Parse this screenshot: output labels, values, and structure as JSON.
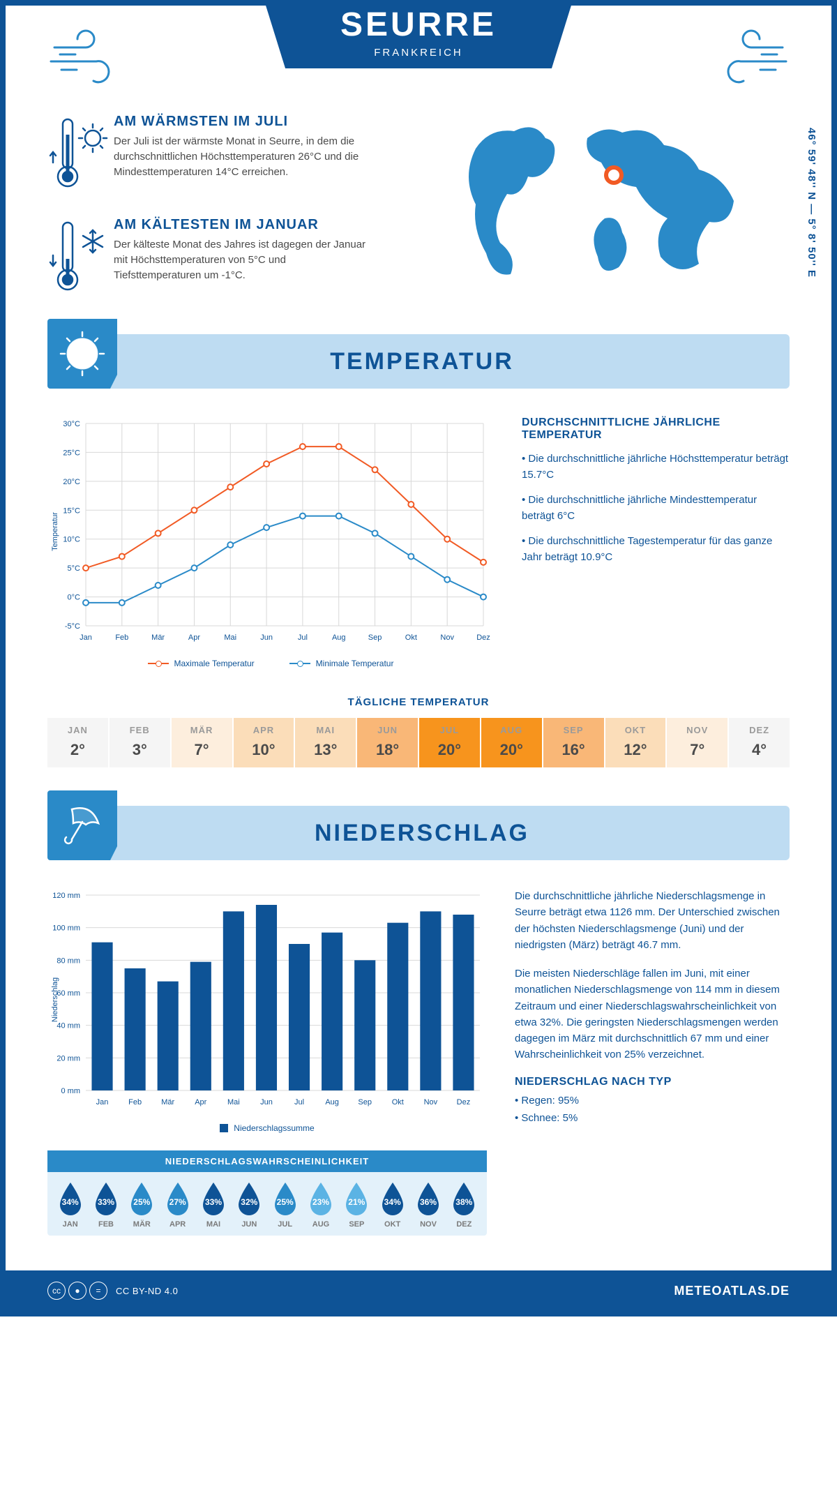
{
  "header": {
    "title": "SEURRE",
    "country": "FRANKREICH"
  },
  "coords": "46° 59' 48'' N — 5° 8' 50'' E",
  "warm": {
    "heading": "AM WÄRMSTEN IM JULI",
    "text": "Der Juli ist der wärmste Monat in Seurre, in dem die durchschnittlichen Höchsttemperaturen 26°C und die Mindesttemperaturen 14°C erreichen."
  },
  "cold": {
    "heading": "AM KÄLTESTEN IM JANUAR",
    "text": "Der kälteste Monat des Jahres ist dagegen der Januar mit Höchsttemperaturen von 5°C und Tiefsttemperaturen um -1°C."
  },
  "sections": {
    "temp": "TEMPERATUR",
    "precip": "NIEDERSCHLAG"
  },
  "tempChart": {
    "type": "line",
    "months": [
      "Jan",
      "Feb",
      "Mär",
      "Apr",
      "Mai",
      "Jun",
      "Jul",
      "Aug",
      "Sep",
      "Okt",
      "Nov",
      "Dez"
    ],
    "max": [
      5,
      7,
      11,
      15,
      19,
      23,
      26,
      26,
      22,
      16,
      10,
      6
    ],
    "min": [
      -1,
      -1,
      2,
      5,
      9,
      12,
      14,
      14,
      11,
      7,
      3,
      0
    ],
    "max_color": "#f15a24",
    "min_color": "#2a8ac8",
    "ylim": [
      -5,
      30
    ],
    "ytick_step": 5,
    "grid_color": "#d8d8d8",
    "line_width": 2,
    "ylabel": "Temperatur",
    "legend_max": "Maximale Temperatur",
    "legend_min": "Minimale Temperatur"
  },
  "tempNotes": {
    "heading": "DURCHSCHNITTLICHE JÄHRLICHE TEMPERATUR",
    "b1": "• Die durchschnittliche jährliche Höchsttemperatur beträgt 15.7°C",
    "b2": "• Die durchschnittliche jährliche Mindesttemperatur beträgt 6°C",
    "b3": "• Die durchschnittliche Tagestemperatur für das ganze Jahr beträgt 10.9°C"
  },
  "dailyTemp": {
    "heading": "TÄGLICHE TEMPERATUR",
    "months": [
      "JAN",
      "FEB",
      "MÄR",
      "APR",
      "MAI",
      "JUN",
      "JUL",
      "AUG",
      "SEP",
      "OKT",
      "NOV",
      "DEZ"
    ],
    "values": [
      "2°",
      "3°",
      "7°",
      "10°",
      "13°",
      "18°",
      "20°",
      "20°",
      "16°",
      "12°",
      "7°",
      "4°"
    ],
    "colors": [
      "#f5f5f5",
      "#f5f5f5",
      "#fdeedd",
      "#fbddb9",
      "#fbddb9",
      "#f9b777",
      "#f7941d",
      "#f7941d",
      "#f9b777",
      "#fbddb9",
      "#fdeedd",
      "#f5f5f5"
    ]
  },
  "precipChart": {
    "type": "bar",
    "months": [
      "Jan",
      "Feb",
      "Mär",
      "Apr",
      "Mai",
      "Jun",
      "Jul",
      "Aug",
      "Sep",
      "Okt",
      "Nov",
      "Dez"
    ],
    "values": [
      91,
      75,
      67,
      79,
      110,
      114,
      90,
      97,
      80,
      103,
      110,
      108
    ],
    "bar_color": "#0e5396",
    "ylim": [
      0,
      120
    ],
    "ytick_step": 20,
    "ylabel": "Niederschlag",
    "legend": "Niederschlagssumme",
    "grid_color": "#d8d8d8"
  },
  "precipText": {
    "p1": "Die durchschnittliche jährliche Niederschlagsmenge in Seurre beträgt etwa 1126 mm. Der Unterschied zwischen der höchsten Niederschlagsmenge (Juni) und der niedrigsten (März) beträgt 46.7 mm.",
    "p2": "Die meisten Niederschläge fallen im Juni, mit einer monatlichen Niederschlagsmenge von 114 mm in diesem Zeitraum und einer Niederschlagswahrscheinlichkeit von etwa 32%. Die geringsten Niederschlagsmengen werden dagegen im März mit durchschnittlich 67 mm und einer Wahrscheinlichkeit von 25% verzeichnet.",
    "h": "NIEDERSCHLAG NACH TYP",
    "rain": "• Regen: 95%",
    "snow": "• Schnee: 5%"
  },
  "prob": {
    "heading": "NIEDERSCHLAGSWAHRSCHEINLICHKEIT",
    "months": [
      "JAN",
      "FEB",
      "MÄR",
      "APR",
      "MAI",
      "JUN",
      "JUL",
      "AUG",
      "SEP",
      "OKT",
      "NOV",
      "DEZ"
    ],
    "values": [
      "34%",
      "33%",
      "25%",
      "27%",
      "33%",
      "32%",
      "25%",
      "23%",
      "21%",
      "34%",
      "36%",
      "38%"
    ],
    "colors": [
      "#0e5396",
      "#0e5396",
      "#2a8ac8",
      "#2a8ac8",
      "#0e5396",
      "#0e5396",
      "#2a8ac8",
      "#5bb3e4",
      "#5bb3e4",
      "#0e5396",
      "#0e5396",
      "#0e5396"
    ]
  },
  "footer": {
    "license": "CC BY-ND 4.0",
    "brand": "METEOATLAS.DE"
  },
  "colors": {
    "primary": "#0e5396",
    "accent": "#2a8ac8",
    "light": "#bedcf2"
  }
}
